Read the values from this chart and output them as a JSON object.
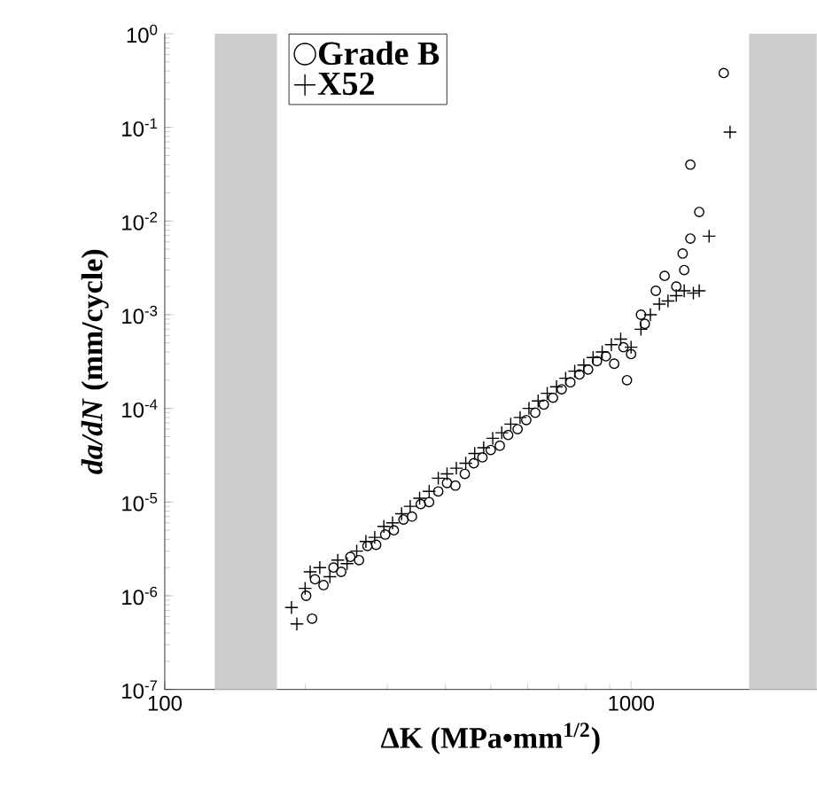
{
  "chart_data": {
    "type": "scatter",
    "xlabel": "ΔK (MPa•mm$^{1/2}$)",
    "ylabel": "*da/dN* (mm/cycle)",
    "log": "xy",
    "xlim": [
      100,
      2500
    ],
    "ylim": [
      1e-07,
      1
    ],
    "xticks": [
      100,
      1000
    ],
    "yticks": [
      {
        "value": 1e-07,
        "label": "10$^{-7}$"
      },
      {
        "value": 1e-06,
        "label": "10$^{-6}$"
      },
      {
        "value": 1e-05,
        "label": "10$^{-5}$"
      },
      {
        "value": 0.0001,
        "label": "10$^{-4}$"
      },
      {
        "value": 0.001,
        "label": "10$^{-3}$"
      },
      {
        "value": 0.01,
        "label": "10$^{-2}$"
      },
      {
        "value": 0.1,
        "label": "10$^{-1}$"
      },
      {
        "value": 1,
        "label": "10$^{0}$"
      }
    ],
    "grid": false,
    "legend": "top left",
    "bands": [
      {
        "axis": "x",
        "from": 128,
        "to": 174,
        "color": "#cccccc"
      },
      {
        "axis": "x",
        "from": 1790,
        "to": 2500,
        "color": "#cccccc"
      }
    ],
    "series": [
      {
        "name": "Grade B",
        "color": "#000000",
        "marker": "circle",
        "x": [
          207,
          201,
          210,
          219,
          230,
          239,
          250,
          261,
          272,
          284,
          297,
          310,
          325,
          339,
          354,
          369,
          386,
          403,
          420,
          440,
          460,
          480,
          500,
          523,
          545,
          571,
          596,
          623,
          650,
          680,
          710,
          741,
          775,
          809,
          845,
          883,
          920,
          963,
          980,
          1000,
          1050,
          1070,
          1130,
          1180,
          1250,
          1290,
          1300,
          1340,
          1400,
          1340,
          1580
        ],
        "values": [
          5.7e-07,
          1e-06,
          1.5e-06,
          1.3e-06,
          2e-06,
          1.8e-06,
          2.6e-06,
          2.4e-06,
          3.4e-06,
          3.5e-06,
          4.5e-06,
          5e-06,
          6.5e-06,
          7e-06,
          9.5e-06,
          1e-05,
          1.3e-05,
          1.6e-05,
          1.5e-05,
          2e-05,
          2.6e-05,
          3e-05,
          3.6e-05,
          4e-05,
          5.2e-05,
          6e-05,
          7.5e-05,
          9e-05,
          0.00011,
          0.00013,
          0.00016,
          0.00019,
          0.00023,
          0.00026,
          0.00032,
          0.00036,
          0.0003,
          0.00045,
          0.0002,
          0.00038,
          0.001,
          0.0008,
          0.0018,
          0.0026,
          0.002,
          0.0045,
          0.003,
          0.0065,
          0.0125,
          0.04,
          0.38
        ]
      },
      {
        "name": "X52",
        "color": "#000000",
        "marker": "cross",
        "x": [
          187,
          192,
          200,
          205,
          215,
          226,
          235,
          246,
          258,
          270,
          282,
          295,
          308,
          322,
          336,
          352,
          369,
          386,
          403,
          422,
          442,
          462,
          483,
          505,
          528,
          552,
          578,
          604,
          632,
          661,
          692,
          724,
          757,
          792,
          829,
          867,
          907,
          950,
          1000,
          1050,
          1100,
          1150,
          1200,
          1250,
          1300,
          1360,
          1400,
          1470,
          1630
        ],
        "values": [
          7.5e-07,
          5e-07,
          1.2e-06,
          1.8e-06,
          2e-06,
          1.6e-06,
          2.4e-06,
          2.2e-06,
          3e-06,
          3.8e-06,
          4.2e-06,
          5.5e-06,
          6e-06,
          7.5e-06,
          9e-06,
          1.1e-05,
          1.3e-05,
          1.8e-05,
          2e-05,
          2.3e-05,
          2.6e-05,
          3.3e-05,
          3.8e-05,
          4.8e-05,
          5.5e-05,
          6.8e-05,
          8e-05,
          0.0001,
          0.00012,
          0.000145,
          0.00017,
          0.00021,
          0.00025,
          0.00029,
          0.00035,
          0.0004,
          0.00048,
          0.00055,
          0.00045,
          0.0007,
          0.001,
          0.0013,
          0.0014,
          0.0016,
          0.0018,
          0.0017,
          0.0018,
          0.0069,
          0.089
        ]
      }
    ]
  }
}
